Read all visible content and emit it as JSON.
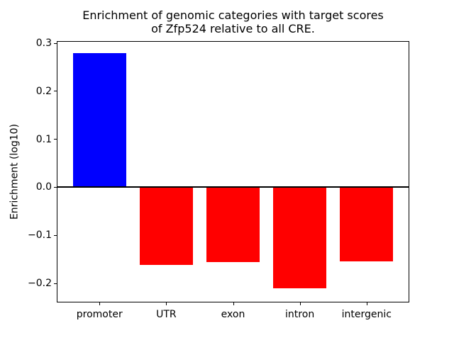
{
  "chart_data": {
    "type": "bar",
    "title_line1": "Enrichment of genomic categories with target scores",
    "title_line2": "of Zfp524 relative to all CRE.",
    "xlabel": "",
    "ylabel": "Enrichment (log10)",
    "categories": [
      "promoter",
      "UTR",
      "exon",
      "intron",
      "intergenic"
    ],
    "values": [
      0.28,
      -0.161,
      -0.156,
      -0.211,
      -0.154
    ],
    "bar_colors": [
      "#0000ff",
      "#ff0000",
      "#ff0000",
      "#ff0000",
      "#ff0000"
    ],
    "bar_width": 0.8,
    "xlim": [
      -0.64,
      4.64
    ],
    "ylim": [
      -0.2398,
      0.3046
    ],
    "yticks": [
      {
        "value": 0.3,
        "label": "0.3"
      },
      {
        "value": 0.2,
        "label": "0.2"
      },
      {
        "value": 0.1,
        "label": "0.1"
      },
      {
        "value": 0.0,
        "label": "0.0"
      },
      {
        "value": -0.1,
        "label": "−0.1"
      },
      {
        "value": -0.2,
        "label": "−0.2"
      }
    ],
    "grid": false,
    "legend": null,
    "zero_line": true,
    "frame_color": "#000000",
    "background_color": "#ffffff"
  }
}
